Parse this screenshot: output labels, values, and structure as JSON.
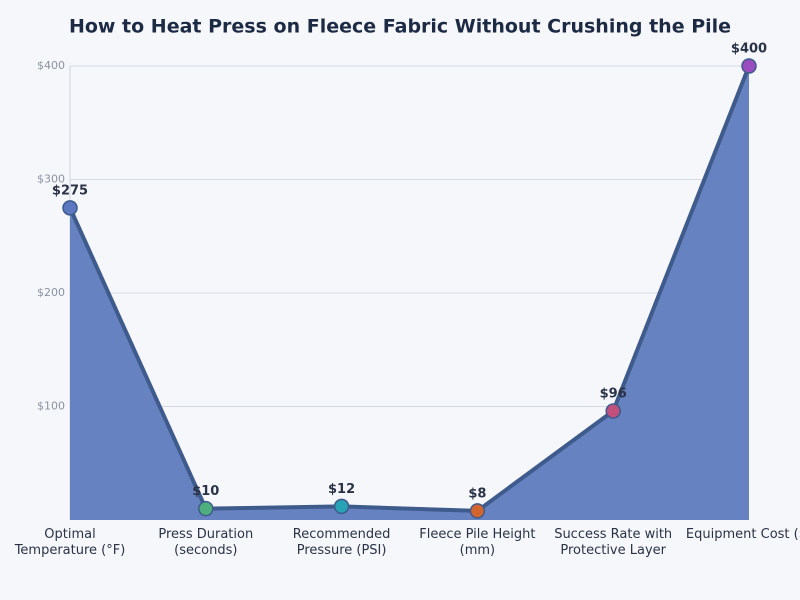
{
  "chart_data": {
    "type": "area",
    "title": "How to Heat Press on Fleece Fabric Without Crushing the Pile",
    "categories": [
      "Optimal Temperature (°F)",
      "Press Duration (seconds)",
      "Recommended Pressure (PSI)",
      "Fleece Pile Height (mm)",
      "Success Rate with Protective Layer",
      "Equipment Cost ($)"
    ],
    "values": [
      275,
      10,
      12,
      8,
      96,
      400
    ],
    "value_labels": [
      "$275",
      "$10",
      "$12",
      "$8",
      "$96",
      "$400"
    ],
    "line_color": "#3f5b8c",
    "fill_color": "#6682c0",
    "point_colors": [
      "#5b78c0",
      "#4fae7e",
      "#27a3b5",
      "#d2652d",
      "#c2507c",
      "#9a4dbe"
    ],
    "ylim": [
      0,
      400
    ],
    "yticks": [
      {
        "value": 100,
        "label": "$100"
      },
      {
        "value": 200,
        "label": "$200"
      },
      {
        "value": 300,
        "label": "$300"
      },
      {
        "value": 400,
        "label": "$400"
      }
    ],
    "grid": true
  }
}
